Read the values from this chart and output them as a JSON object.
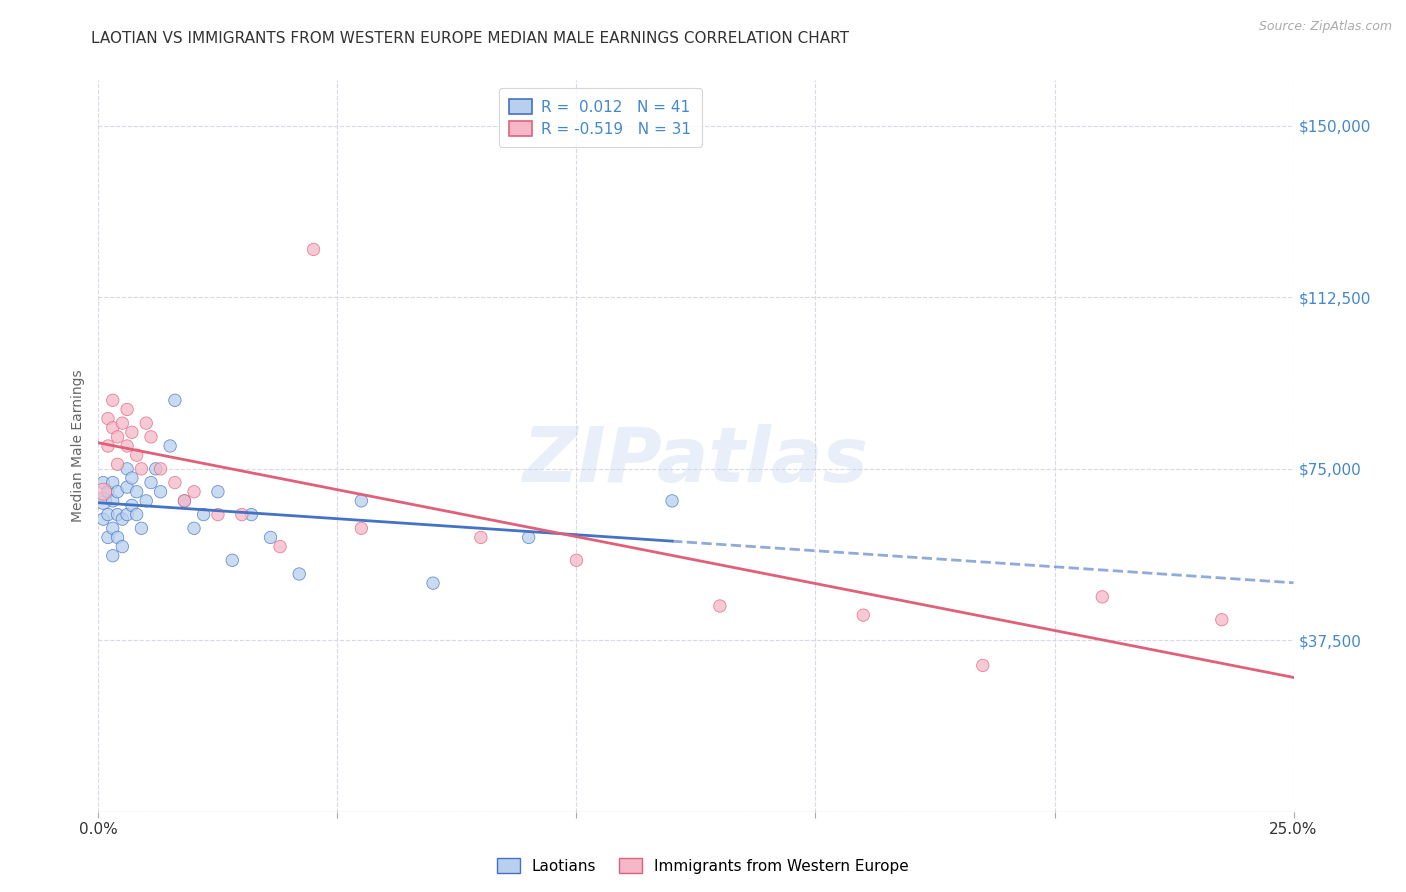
{
  "title": "LAOTIAN VS IMMIGRANTS FROM WESTERN EUROPE MEDIAN MALE EARNINGS CORRELATION CHART",
  "source": "Source: ZipAtlas.com",
  "ylabel": "Median Male Earnings",
  "xlim": [
    0.0,
    0.25
  ],
  "ylim": [
    0,
    160000
  ],
  "yticks": [
    0,
    37500,
    75000,
    112500,
    150000
  ],
  "ytick_labels": [
    "",
    "$37,500",
    "$75,000",
    "$112,500",
    "$150,000"
  ],
  "bg_color": "#ffffff",
  "grid_color": "#d8d8e8",
  "series1_color": "#b8d0ed",
  "series2_color": "#f5b8c8",
  "series1_line_color": "#4472c4",
  "series2_line_color": "#e0607a",
  "series1_label": "Laotians",
  "series2_label": "Immigrants from Western Europe",
  "series1_R": "0.012",
  "series1_N": "41",
  "series2_R": "-0.519",
  "series2_N": "31",
  "watermark": "ZIPatlas",
  "series1_x": [
    0.001,
    0.001,
    0.001,
    0.002,
    0.002,
    0.002,
    0.003,
    0.003,
    0.003,
    0.003,
    0.004,
    0.004,
    0.004,
    0.005,
    0.005,
    0.006,
    0.006,
    0.006,
    0.007,
    0.007,
    0.008,
    0.008,
    0.009,
    0.01,
    0.011,
    0.012,
    0.013,
    0.015,
    0.016,
    0.018,
    0.02,
    0.022,
    0.025,
    0.028,
    0.032,
    0.036,
    0.042,
    0.055,
    0.07,
    0.09,
    0.12
  ],
  "series1_y": [
    68000,
    64000,
    72000,
    60000,
    65000,
    70000,
    56000,
    62000,
    68000,
    72000,
    60000,
    65000,
    70000,
    58000,
    64000,
    71000,
    65000,
    75000,
    67000,
    73000,
    65000,
    70000,
    62000,
    68000,
    72000,
    75000,
    70000,
    80000,
    90000,
    68000,
    62000,
    65000,
    70000,
    55000,
    65000,
    60000,
    52000,
    68000,
    50000,
    60000,
    68000
  ],
  "series1_sizes": [
    150,
    80,
    80,
    80,
    80,
    80,
    80,
    80,
    80,
    80,
    80,
    80,
    80,
    80,
    80,
    80,
    80,
    80,
    80,
    80,
    80,
    80,
    80,
    80,
    80,
    80,
    80,
    80,
    80,
    80,
    80,
    80,
    80,
    80,
    80,
    80,
    80,
    80,
    80,
    80,
    80
  ],
  "series2_x": [
    0.001,
    0.002,
    0.002,
    0.003,
    0.003,
    0.004,
    0.004,
    0.005,
    0.006,
    0.006,
    0.007,
    0.008,
    0.009,
    0.01,
    0.011,
    0.013,
    0.016,
    0.018,
    0.02,
    0.025,
    0.03,
    0.038,
    0.045,
    0.055,
    0.08,
    0.1,
    0.13,
    0.16,
    0.185,
    0.21,
    0.235
  ],
  "series2_y": [
    70000,
    86000,
    80000,
    90000,
    84000,
    82000,
    76000,
    85000,
    80000,
    88000,
    83000,
    78000,
    75000,
    85000,
    82000,
    75000,
    72000,
    68000,
    70000,
    65000,
    65000,
    58000,
    123000,
    62000,
    60000,
    55000,
    45000,
    43000,
    32000,
    47000,
    42000
  ],
  "series2_sizes": [
    150,
    80,
    80,
    80,
    80,
    80,
    80,
    80,
    80,
    80,
    80,
    80,
    80,
    80,
    80,
    80,
    80,
    80,
    80,
    80,
    80,
    80,
    80,
    80,
    80,
    80,
    80,
    80,
    80,
    80,
    80
  ],
  "blue_line_solid_end": 0.12,
  "blue_line_dash_start": 0.12,
  "blue_line_dash_end": 0.25
}
